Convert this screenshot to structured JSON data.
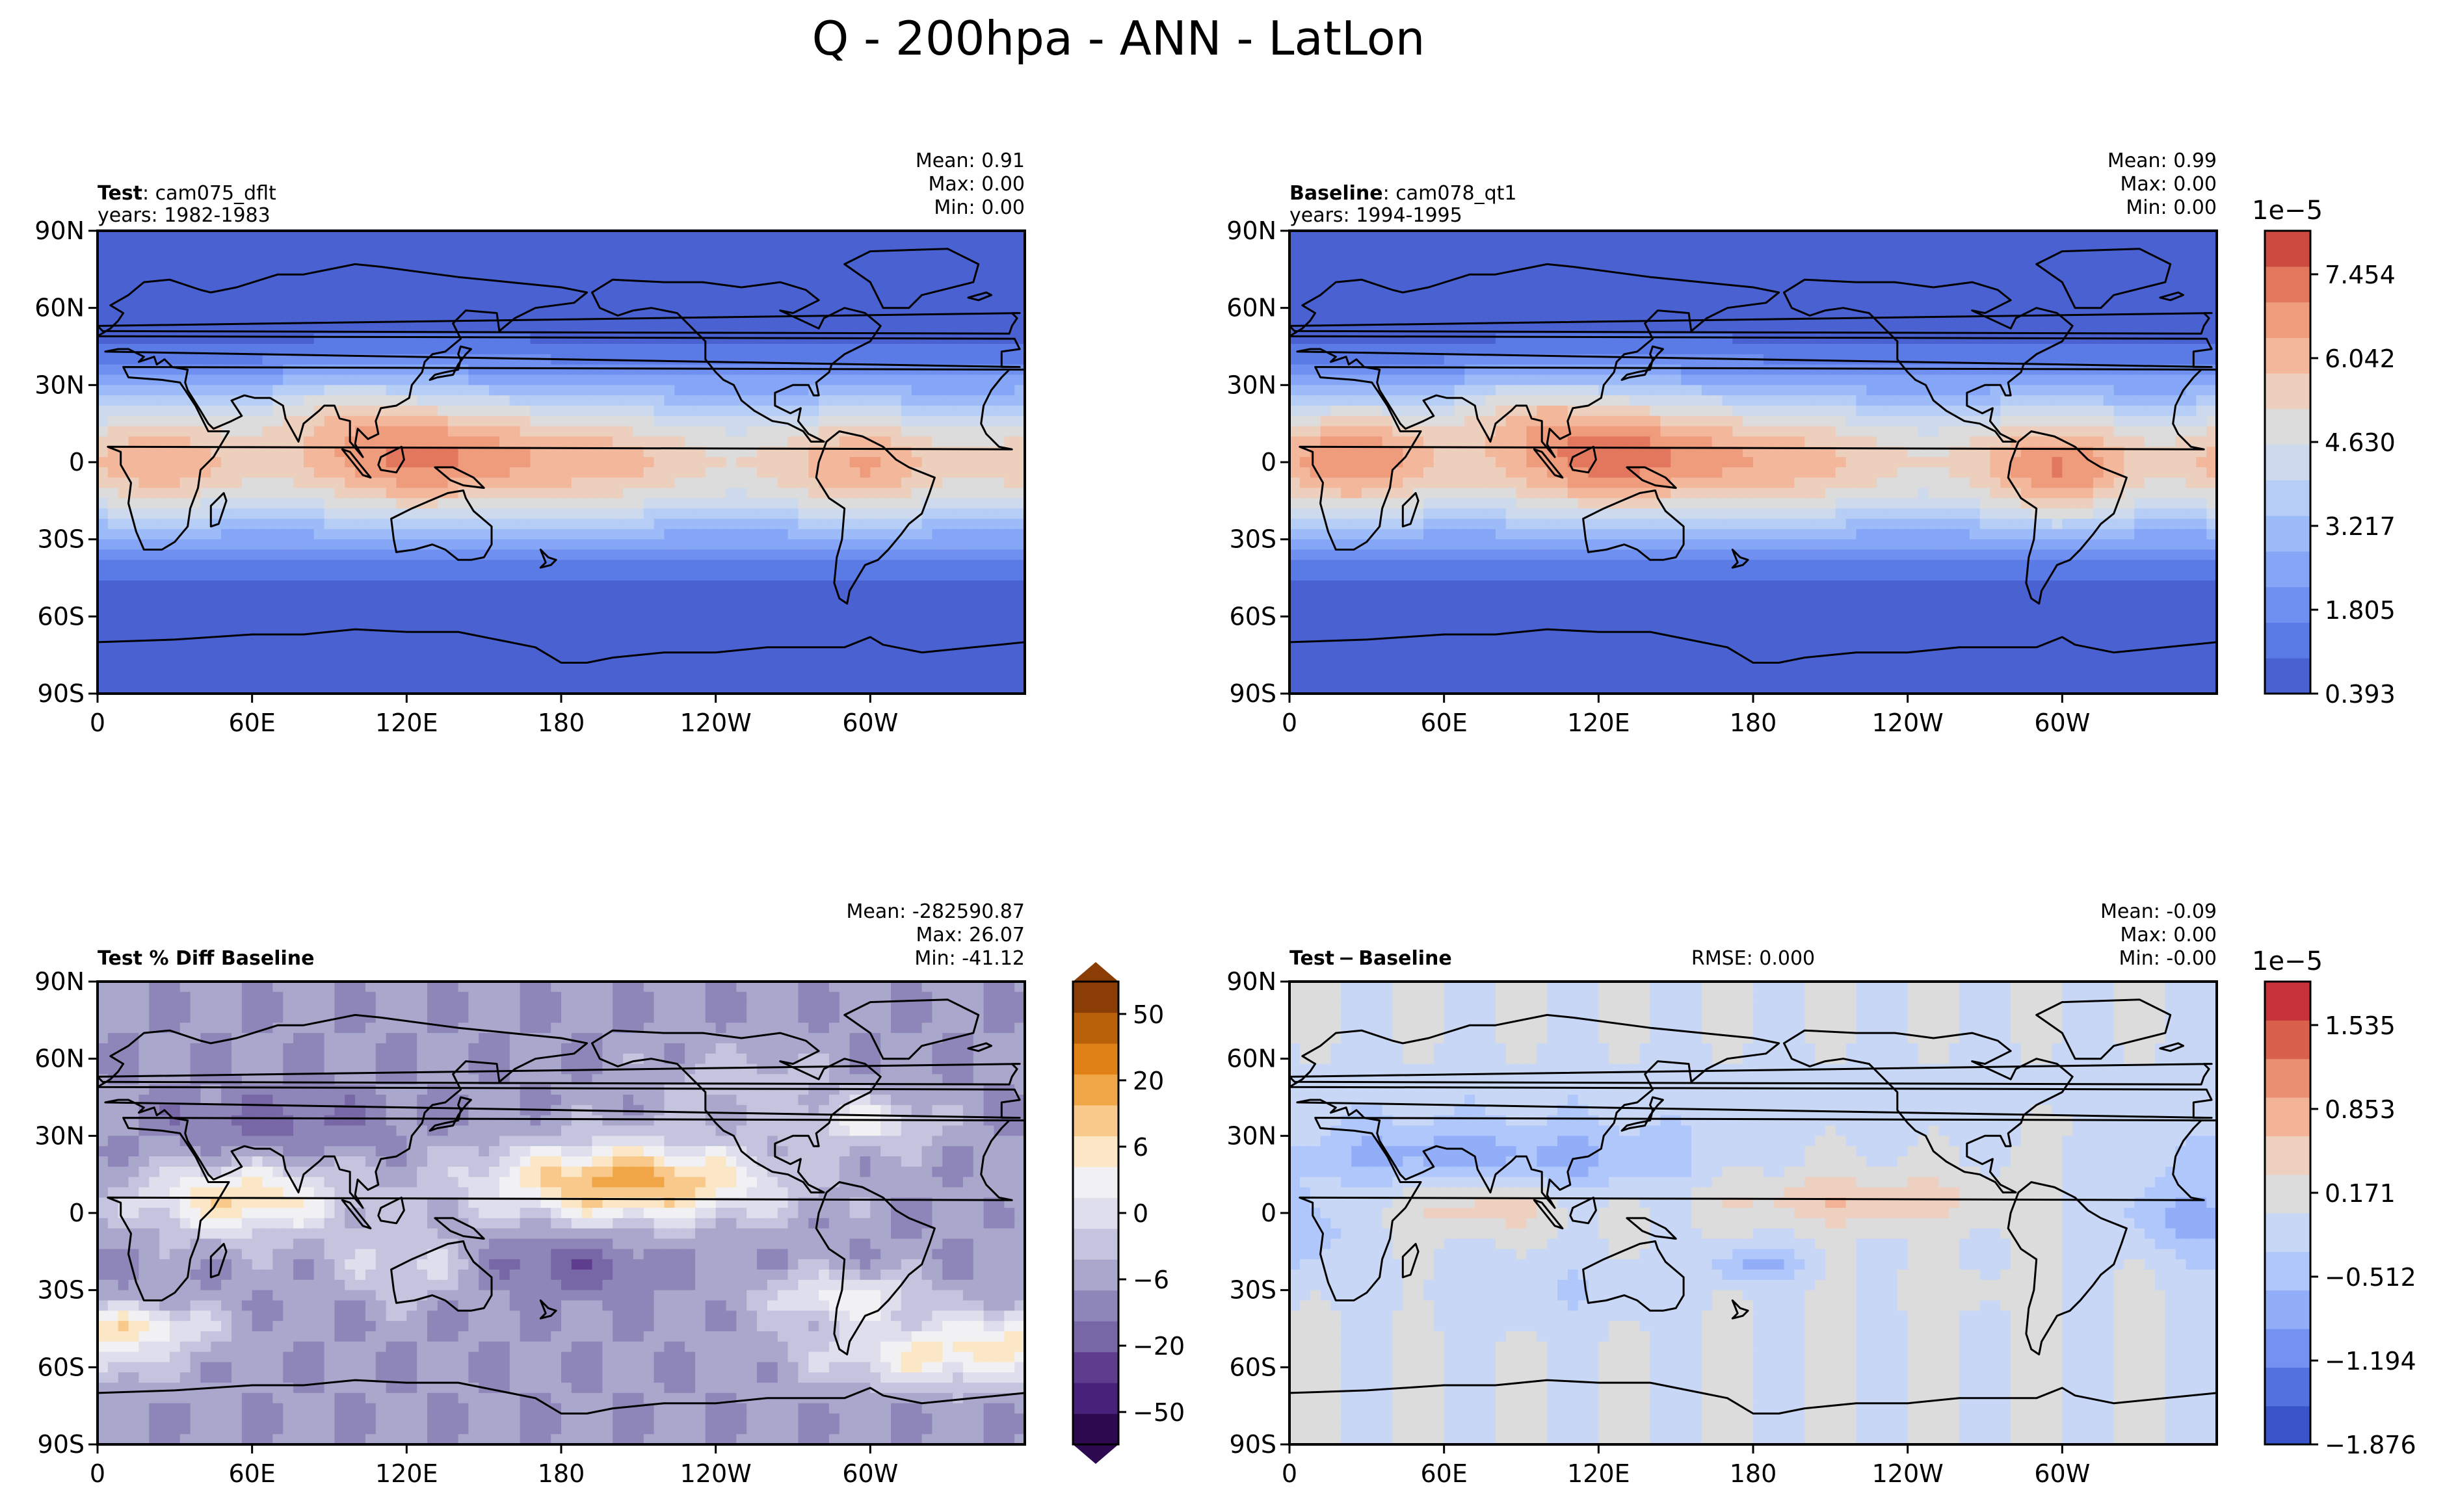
{
  "figure": {
    "title": "Q - 200hpa - ANN - LatLon"
  },
  "chart_data": [
    {
      "id": "test",
      "type": "heatmap",
      "title_bold": "Test",
      "title_rest": ": cam075_dflt",
      "subtitle": "years: 1982-1983",
      "stats": {
        "mean": "Mean:  0.91",
        "max": "Max:  0.00",
        "min": "Min:  0.00"
      },
      "x_ticks": [
        "0",
        "60E",
        "120E",
        "180",
        "120W",
        "60W"
      ],
      "y_ticks": [
        "90N",
        "60N",
        "30N",
        "0",
        "30S",
        "60S",
        "90S"
      ],
      "xlim_lon": [
        0,
        360
      ],
      "ylim_lat": [
        -90,
        90
      ],
      "colormap": "test_base",
      "field": "moisture_test"
    },
    {
      "id": "baseline",
      "type": "heatmap",
      "title_bold": "Baseline",
      "title_rest": ": cam078_qt1",
      "subtitle": "years: 1994-1995",
      "stats": {
        "mean": "Mean:  0.99",
        "max": "Max:  0.00",
        "min": "Min:  0.00"
      },
      "x_ticks": [
        "0",
        "60E",
        "120E",
        "180",
        "120W",
        "60W"
      ],
      "y_ticks": [
        "90N",
        "60N",
        "30N",
        "0",
        "30S",
        "60S",
        "90S"
      ],
      "xlim_lon": [
        0,
        360
      ],
      "ylim_lat": [
        -90,
        90
      ],
      "colormap": "test_base",
      "field": "moisture_base",
      "colorbar": {
        "exponent": "1e−5",
        "labels": [
          "7.454",
          "6.042",
          "4.630",
          "3.217",
          "1.805",
          "0.393"
        ],
        "range": [
          0.393,
          8.16
        ]
      }
    },
    {
      "id": "pctdiff",
      "type": "heatmap",
      "title_bold": "Test % Diff Baseline",
      "title_rest": "",
      "subtitle": "",
      "stats": {
        "mean": "Mean: -282590.87",
        "max": "Max: 26.07",
        "min": "Min: -41.12"
      },
      "x_ticks": [
        "0",
        "60E",
        "120E",
        "180",
        "120W",
        "60W"
      ],
      "y_ticks": [
        "90N",
        "60N",
        "30N",
        "0",
        "30S",
        "60S",
        "90S"
      ],
      "xlim_lon": [
        0,
        360
      ],
      "ylim_lat": [
        -90,
        90
      ],
      "colormap": "purple_orange",
      "field": "pct_diff",
      "colorbar": {
        "exponent": "",
        "labels": [
          "50",
          "20",
          "6",
          "0",
          "−6",
          "−20",
          "−50"
        ]
      }
    },
    {
      "id": "diff",
      "type": "heatmap",
      "title_bold": "Test − Baseline",
      "title_rest": "",
      "subtitle": "",
      "rmse": "RMSE: 0.000",
      "stats": {
        "mean": "Mean: -0.09",
        "max": "Max:  0.00",
        "min": "Min: -0.00"
      },
      "x_ticks": [
        "0",
        "60E",
        "120E",
        "180",
        "120W",
        "60W"
      ],
      "y_ticks": [
        "90N",
        "60N",
        "30N",
        "0",
        "30S",
        "60S",
        "90S"
      ],
      "xlim_lon": [
        0,
        360
      ],
      "ylim_lat": [
        -90,
        90
      ],
      "colormap": "diff",
      "field": "diff",
      "colorbar": {
        "exponent": "1e−5",
        "labels": [
          "1.535",
          "0.853",
          "0.171",
          "−0.512",
          "−1.194",
          "−1.876"
        ],
        "range": [
          -1.876,
          1.876
        ]
      }
    }
  ],
  "colors": {
    "test_base": [
      "#4a61d2",
      "#5a7ae6",
      "#6f90f0",
      "#85a6f7",
      "#9dbbf8",
      "#b6cdf5",
      "#cdd9ec",
      "#dcdcdc",
      "#edcfbe",
      "#f3b89b",
      "#ee9c7c",
      "#e2775e",
      "#cc4a3f"
    ],
    "purple_orange": [
      "#2d0a4f",
      "#48217a",
      "#5f3d8e",
      "#7867a6",
      "#8e86b9",
      "#a9a7cc",
      "#c5c4de",
      "#dfdeec",
      "#f1f1f3",
      "#fbe6c6",
      "#f8c98b",
      "#f0a646",
      "#df8116",
      "#b9600a",
      "#8a3e06"
    ],
    "diff": [
      "#3a55c9",
      "#5472df",
      "#7592f0",
      "#93aef8",
      "#afc7fb",
      "#c8d7f5",
      "#dcdcdc",
      "#eed0c0",
      "#f3b396",
      "#ea8f72",
      "#d9604c",
      "#c7333a"
    ],
    "coast": "#000000"
  }
}
